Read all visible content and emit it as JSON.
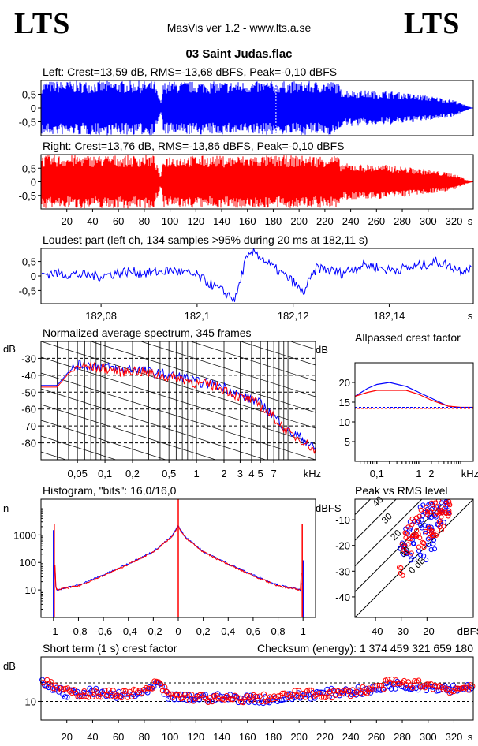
{
  "logo_left": "LTS",
  "logo_right": "LTS",
  "app_title": "MasVis ver 1.2 - www.lts.a.se",
  "file_name": "03 Saint Judas.flac",
  "colors": {
    "left": "#0000ff",
    "right": "#ff0000",
    "grid": "#000000",
    "dashed": "#000000"
  },
  "chart_data": [
    {
      "type": "area",
      "id": "waveform-left",
      "title": "Left: Crest=13,59 dB, RMS=-13,68 dBFS, Peak=-0,10 dBFS",
      "ytick_labels": [
        "0,5",
        "0",
        "-0,5"
      ],
      "yticks": [
        0.5,
        0,
        -0.5
      ],
      "ylim": [
        -1,
        1
      ],
      "xlim": [
        0,
        335
      ],
      "marker_x": 182.11,
      "envelope": {
        "x": [
          0,
          5,
          88,
          90,
          93,
          95,
          100,
          140,
          180,
          200,
          230,
          232,
          240,
          270,
          300,
          320,
          328,
          335
        ],
        "amp": [
          0.95,
          0.98,
          0.98,
          0.6,
          0.2,
          0.95,
          0.97,
          0.96,
          0.97,
          0.97,
          0.97,
          0.7,
          0.66,
          0.62,
          0.45,
          0.3,
          0.12,
          0.0
        ]
      }
    },
    {
      "type": "area",
      "id": "waveform-right",
      "title": "Right: Crest=13,76 dB, RMS=-13,86 dBFS, Peak=-0,10 dBFS",
      "ytick_labels": [
        "0,5",
        "0",
        "-0,5"
      ],
      "yticks": [
        0.5,
        0,
        -0.5
      ],
      "ylim": [
        -1,
        1
      ],
      "xlim": [
        0,
        335
      ],
      "xticks": [
        20,
        40,
        60,
        80,
        100,
        120,
        140,
        160,
        180,
        200,
        220,
        240,
        260,
        280,
        300,
        320
      ],
      "xtick_labels": [
        "20",
        "40",
        "60",
        "80",
        "100",
        "120",
        "140",
        "160",
        "180",
        "200",
        "220",
        "240",
        "260",
        "280",
        "300",
        "320"
      ],
      "xunit": "s",
      "envelope": {
        "x": [
          0,
          5,
          88,
          90,
          93,
          95,
          100,
          140,
          180,
          200,
          230,
          232,
          240,
          270,
          300,
          320,
          328,
          335
        ],
        "amp": [
          0.95,
          0.98,
          0.98,
          0.6,
          0.2,
          0.95,
          0.97,
          0.96,
          0.97,
          0.97,
          0.97,
          0.7,
          0.66,
          0.62,
          0.45,
          0.3,
          0.12,
          0.0
        ]
      }
    },
    {
      "type": "line",
      "id": "loudest-part",
      "title": "Loudest part (left  ch, 134 samples >95% during 20 ms at 182,11 s)",
      "ytick_labels": [
        "0,5",
        "0",
        "-0,5"
      ],
      "yticks": [
        0.5,
        0,
        -0.5
      ],
      "ylim": [
        -0.95,
        0.95
      ],
      "xlim": [
        182.0675,
        182.1575
      ],
      "xticks": [
        182.08,
        182.1,
        182.12,
        182.14
      ],
      "xtick_labels": [
        "182,08",
        "182,1",
        "182,12",
        "182,14"
      ],
      "xunit": "s",
      "x": [
        182.0675,
        182.07,
        182.075,
        182.08,
        182.085,
        182.09,
        182.095,
        182.1,
        182.105,
        182.108,
        182.11,
        182.112,
        182.115,
        182.12,
        182.122,
        182.125,
        182.13,
        182.135,
        182.14,
        182.145,
        182.15,
        182.155,
        182.1575
      ],
      "y": [
        0.05,
        0.1,
        0.05,
        0.0,
        0.15,
        0.1,
        0.2,
        0.0,
        -0.5,
        -0.8,
        0.5,
        0.85,
        0.4,
        -0.2,
        -0.6,
        0.3,
        0.1,
        0.4,
        0.2,
        0.3,
        0.5,
        0.2,
        0.3
      ]
    },
    {
      "type": "line",
      "id": "spectrum",
      "title": "Normalized average spectrum, 345 frames",
      "ylabel": "dB",
      "ytick_labels": [
        "-30",
        "-40",
        "-50",
        "-60",
        "-70",
        "-80"
      ],
      "yticks": [
        -30,
        -40,
        -50,
        -60,
        -70,
        -80
      ],
      "ylim": [
        -90,
        -20
      ],
      "xscale": "log",
      "xlim": [
        0.02,
        20
      ],
      "xticks": [
        0.05,
        0.1,
        0.2,
        0.5,
        1,
        2,
        3,
        4,
        5,
        7
      ],
      "xtick_labels": [
        "0,05",
        "0,1",
        "0,2",
        "0,5",
        "1",
        "2",
        "3",
        "4",
        "5",
        "7"
      ],
      "xunit": "kHz",
      "series": [
        {
          "name": "left",
          "x": [
            0.02,
            0.03,
            0.04,
            0.05,
            0.07,
            0.1,
            0.15,
            0.2,
            0.3,
            0.5,
            0.7,
            1,
            1.5,
            2,
            3,
            4,
            5,
            7,
            10,
            15,
            20
          ],
          "y": [
            -46,
            -46,
            -38,
            -34,
            -34,
            -35,
            -37,
            -36,
            -38,
            -40,
            -41,
            -44,
            -45,
            -47,
            -52,
            -54,
            -57,
            -64,
            -73,
            -78,
            -84
          ]
        },
        {
          "name": "right",
          "x": [
            0.02,
            0.03,
            0.04,
            0.05,
            0.07,
            0.1,
            0.15,
            0.2,
            0.3,
            0.5,
            0.7,
            1,
            1.5,
            2,
            3,
            4,
            5,
            7,
            10,
            15,
            20
          ],
          "y": [
            -47,
            -47,
            -39,
            -35,
            -35,
            -36,
            -38,
            -37,
            -39,
            -41,
            -42,
            -45,
            -46,
            -48,
            -53,
            -55,
            -58,
            -65,
            -74,
            -79,
            -85
          ]
        }
      ]
    },
    {
      "type": "line",
      "id": "allpassed-crest",
      "title": "Allpassed crest factor",
      "ylabel": "dB",
      "ytick_labels": [
        "20",
        "15",
        "10",
        "5"
      ],
      "yticks": [
        20,
        15,
        10,
        5
      ],
      "ylim": [
        0,
        25
      ],
      "xscale": "log",
      "xlim": [
        0.03,
        20
      ],
      "xticks": [
        0.1,
        1,
        2
      ],
      "xtick_labels": [
        "0,1",
        "1",
        "2"
      ],
      "xunit": "kHz",
      "reference": 13.6,
      "series": [
        {
          "name": "left",
          "x": [
            0.03,
            0.06,
            0.1,
            0.2,
            0.5,
            1,
            2,
            5,
            10,
            20
          ],
          "y": [
            16.5,
            18.5,
            19.5,
            20,
            19,
            17.5,
            16,
            14,
            13.6,
            13.6
          ]
        },
        {
          "name": "right",
          "x": [
            0.03,
            0.06,
            0.1,
            0.2,
            0.5,
            1,
            2,
            5,
            10,
            20
          ],
          "y": [
            16.5,
            17.5,
            18,
            18,
            18,
            17,
            15.5,
            14,
            13.7,
            13.7
          ]
        }
      ]
    },
    {
      "type": "line",
      "id": "histogram",
      "title": "Histogram, \"bits\": 16,0/16,0",
      "ylabel": "n",
      "ytick_labels": [
        "1000",
        "100",
        "10"
      ],
      "yticks": [
        1000,
        100,
        10
      ],
      "yscale": "log",
      "ylim": [
        1,
        20000
      ],
      "xlim": [
        -1.1,
        1.1
      ],
      "xticks": [
        -1,
        -0.8,
        -0.6,
        -0.4,
        -0.2,
        0,
        0.2,
        0.4,
        0.6,
        0.8,
        1
      ],
      "xtick_labels": [
        "-1",
        "-0,8",
        "-0,6",
        "-0,4",
        "-0,2",
        "0",
        "0,2",
        "0,4",
        "0,6",
        "0,8",
        "1"
      ],
      "series": [
        {
          "name": "left",
          "x": [
            -1,
            -0.98,
            -0.8,
            -0.6,
            -0.4,
            -0.2,
            -0.05,
            0,
            0.05,
            0.2,
            0.4,
            0.6,
            0.8,
            0.98,
            1
          ],
          "y": [
            1500,
            10,
            15,
            35,
            90,
            250,
            900,
            2200,
            900,
            250,
            90,
            35,
            15,
            10,
            120
          ]
        },
        {
          "name": "right",
          "x": [
            -1,
            -0.98,
            -0.8,
            -0.6,
            -0.4,
            -0.2,
            -0.05,
            0,
            0.05,
            0.2,
            0.4,
            0.6,
            0.8,
            0.98,
            1
          ],
          "y": [
            2500,
            10,
            14,
            33,
            85,
            240,
            850,
            2000,
            850,
            240,
            85,
            33,
            14,
            10,
            2500
          ]
        }
      ]
    },
    {
      "type": "scatter",
      "id": "peak-vs-rms",
      "title": "Peak vs RMS level",
      "ylabel": "dBFS",
      "ytick_labels": [
        "-10",
        "-20",
        "-30",
        "-40"
      ],
      "yticks": [
        -10,
        -20,
        -30,
        -40
      ],
      "ylim": [
        -48,
        -2
      ],
      "xlim": [
        -48,
        -2
      ],
      "xticks": [
        -40,
        -30,
        -20
      ],
      "xtick_labels": [
        "-40",
        "-30",
        "-20"
      ],
      "xunit": "dBFS",
      "diagonal_labels": [
        "40",
        "30",
        "20",
        "10",
        "0 dB"
      ],
      "diagonal_offsets": [
        40,
        30,
        20,
        10,
        0
      ],
      "series": [
        {
          "name": "left",
          "x": [
            -30,
            -28,
            -27,
            -25,
            -24,
            -23,
            -22,
            -21,
            -20,
            -19,
            -18,
            -17,
            -16,
            -15,
            -14,
            -13,
            -12,
            -26,
            -22,
            -18
          ],
          "y": [
            -20,
            -22,
            -15,
            -12,
            -18,
            -10,
            -14,
            -6,
            -12,
            -8,
            -16,
            -5,
            -9,
            -7,
            -11,
            -4,
            -6,
            -25,
            -24,
            -20
          ]
        },
        {
          "name": "right",
          "x": [
            -31,
            -29,
            -27,
            -26,
            -24,
            -23,
            -21,
            -20,
            -19,
            -18,
            -17,
            -16,
            -15,
            -14,
            -13,
            -12,
            -11,
            -27,
            -23,
            -17
          ],
          "y": [
            -30,
            -18,
            -14,
            -16,
            -10,
            -17,
            -8,
            -13,
            -6,
            -15,
            -4,
            -10,
            -7,
            -12,
            -5,
            -8,
            -3,
            -22,
            -20,
            -18
          ]
        }
      ]
    },
    {
      "type": "scatter",
      "id": "short-term-crest",
      "title": "Short term (1 s) crest factor",
      "checksum": "Checksum (energy):  1 374 459 321 659 180",
      "ylabel": "dB",
      "ytick_labels": [
        "10"
      ],
      "yticks": [
        10
      ],
      "ylim": [
        5,
        22
      ],
      "dashed_levels": [
        10,
        15
      ],
      "xlim": [
        0,
        335
      ],
      "xticks": [
        20,
        40,
        60,
        80,
        100,
        120,
        140,
        160,
        180,
        200,
        220,
        240,
        260,
        280,
        300,
        320
      ],
      "xtick_labels": [
        "20",
        "40",
        "60",
        "80",
        "100",
        "120",
        "140",
        "160",
        "180",
        "200",
        "220",
        "240",
        "260",
        "280",
        "300",
        "320"
      ],
      "xunit": "s",
      "series": [
        {
          "name": "left",
          "x": [
            0,
            20,
            40,
            60,
            80,
            90,
            100,
            140,
            180,
            200,
            230,
            260,
            270,
            300,
            320,
            335
          ],
          "y": [
            15,
            12,
            12.5,
            11.5,
            12,
            14.5,
            11,
            11,
            10.5,
            11.5,
            12.5,
            13,
            14.5,
            14,
            13.5,
            14
          ]
        },
        {
          "name": "right",
          "x": [
            0,
            20,
            40,
            60,
            80,
            90,
            100,
            140,
            180,
            200,
            230,
            260,
            270,
            300,
            320,
            335
          ],
          "y": [
            15.5,
            12.5,
            12,
            12,
            12.5,
            15,
            11.5,
            10.5,
            11,
            12,
            12,
            13.5,
            15,
            14.5,
            13,
            14.5
          ]
        }
      ]
    }
  ]
}
